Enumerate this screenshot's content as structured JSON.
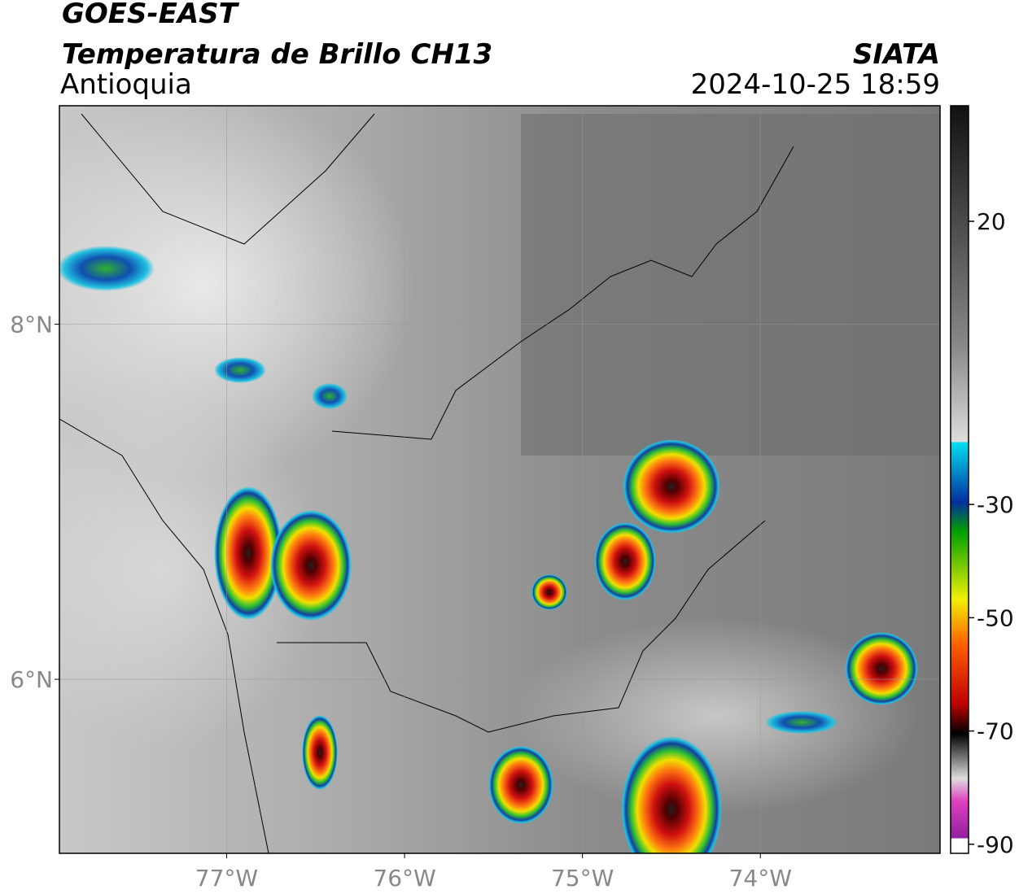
{
  "chart_data": {
    "type": "map",
    "title": "GOES-EAST",
    "subtitle": "Temperatura de Brillo CH13",
    "region": "Antioquia",
    "source": "SIATA",
    "timestamp": "2024-10-25 18:59",
    "xlim": [
      -77.94,
      -72.99
    ],
    "ylim": [
      5.02,
      9.23
    ],
    "xticks": [
      {
        "value": -77,
        "label": "77°W"
      },
      {
        "value": -76,
        "label": "76°W"
      },
      {
        "value": -75,
        "label": "75°W"
      },
      {
        "value": -74,
        "label": "74°W"
      }
    ],
    "yticks": [
      {
        "value": 6,
        "label": "6°N"
      },
      {
        "value": 8,
        "label": "8°N"
      }
    ],
    "grid": true,
    "colorbar_lim": [
      40.4,
      -91.6
    ],
    "colorbar_ticks": [
      20,
      -30,
      -50,
      -70,
      -90
    ]
  }
}
